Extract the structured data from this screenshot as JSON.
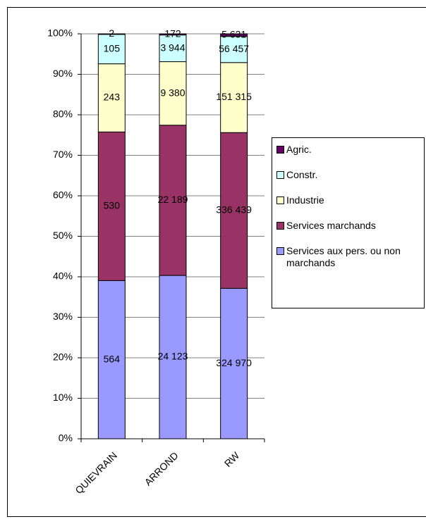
{
  "chart_data": {
    "type": "bar",
    "stacking": "percent",
    "categories": [
      "QUIEVRAIN",
      "ARROND",
      "RW"
    ],
    "series": [
      {
        "name": "Services aux pers. ou non marchands",
        "color": "#9999ff",
        "values": [
          564,
          24123,
          324970
        ],
        "value_labels": [
          "564",
          "24 123",
          "324 970"
        ]
      },
      {
        "name": "Services marchands",
        "color": "#993366",
        "values": [
          530,
          22189,
          336439
        ],
        "value_labels": [
          "530",
          "22 189",
          "336 439"
        ]
      },
      {
        "name": "Industrie",
        "color": "#ffffcc",
        "values": [
          243,
          9380,
          151315
        ],
        "value_labels": [
          "243",
          "9 380",
          "151 315"
        ]
      },
      {
        "name": "Constr.",
        "color": "#ccffff",
        "values": [
          105,
          3944,
          56457
        ],
        "value_labels": [
          "105",
          "3 944",
          "56 457"
        ]
      },
      {
        "name": "Agric.",
        "color": "#660066",
        "values": [
          2,
          172,
          5631
        ],
        "value_labels": [
          "2",
          "172",
          "5 631"
        ]
      }
    ],
    "ylim": [
      0,
      100
    ],
    "yticks": [
      {
        "value": 0,
        "label": "0%"
      },
      {
        "value": 10,
        "label": "10%"
      },
      {
        "value": 20,
        "label": "20%"
      },
      {
        "value": 30,
        "label": "30%"
      },
      {
        "value": 40,
        "label": "40%"
      },
      {
        "value": 50,
        "label": "50%"
      },
      {
        "value": 60,
        "label": "60%"
      },
      {
        "value": 70,
        "label": "70%"
      },
      {
        "value": 80,
        "label": "80%"
      },
      {
        "value": 90,
        "label": "90%"
      },
      {
        "value": 100,
        "label": "100%"
      }
    ],
    "grid": true,
    "legend": "right"
  }
}
